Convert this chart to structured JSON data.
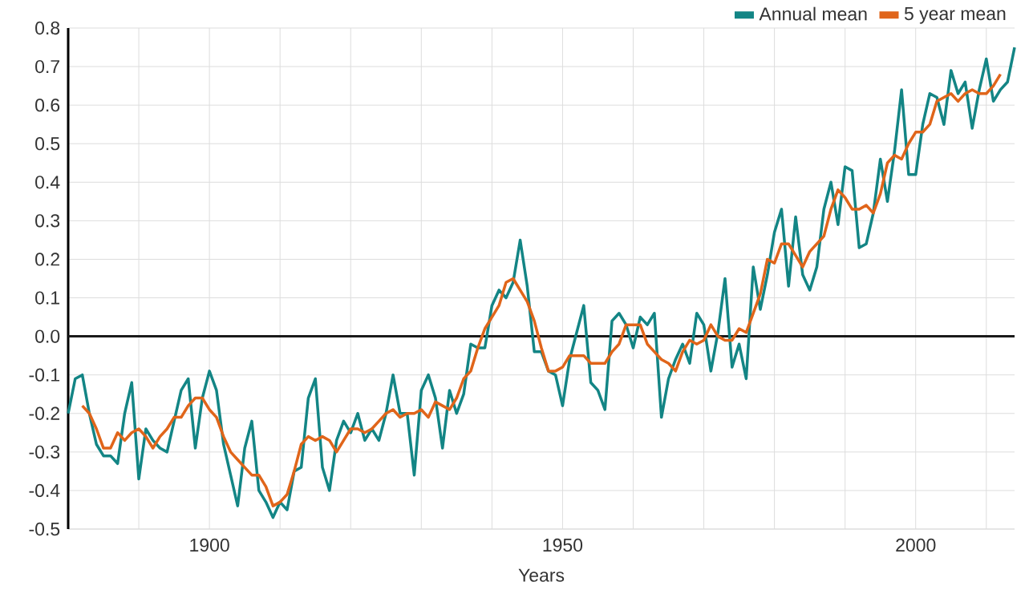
{
  "chart_data": {
    "type": "line",
    "xlabel": "Years",
    "xlim": [
      1880,
      2014
    ],
    "ylim": [
      -0.5,
      0.8
    ],
    "xticks": [
      {
        "value": 1890,
        "label": null
      },
      1900,
      {
        "value": 1910,
        "label": null
      },
      {
        "value": 1920,
        "label": null
      },
      {
        "value": 1930,
        "label": null
      },
      {
        "value": 1940,
        "label": null
      },
      1950,
      {
        "value": 1960,
        "label": null
      },
      {
        "value": 1970,
        "label": null
      },
      {
        "value": 1980,
        "label": null
      },
      {
        "value": 1990,
        "label": null
      },
      2000,
      {
        "value": 2010,
        "label": null
      }
    ],
    "yticks": [
      -0.5,
      -0.4,
      -0.3,
      -0.2,
      -0.1,
      {
        "value": 0,
        "label": "0.0"
      },
      0.1,
      0.2,
      0.3,
      0.4,
      0.5,
      0.6,
      0.7,
      0.8
    ],
    "grid": true,
    "legend": "top right",
    "marker": "none",
    "line_style": "solid",
    "ref_lines": [
      {
        "axis": "y",
        "value": 0,
        "color": "#1a1a1a"
      }
    ],
    "series": [
      {
        "name": "Annual mean",
        "color": "#138585",
        "x": [
          1880,
          1881,
          1882,
          1883,
          1884,
          1885,
          1886,
          1887,
          1888,
          1889,
          1890,
          1891,
          1892,
          1893,
          1894,
          1895,
          1896,
          1897,
          1898,
          1899,
          1900,
          1901,
          1902,
          1903,
          1904,
          1905,
          1906,
          1907,
          1908,
          1909,
          1910,
          1911,
          1912,
          1913,
          1914,
          1915,
          1916,
          1917,
          1918,
          1919,
          1920,
          1921,
          1922,
          1923,
          1924,
          1925,
          1926,
          1927,
          1928,
          1929,
          1930,
          1931,
          1932,
          1933,
          1934,
          1935,
          1936,
          1937,
          1938,
          1939,
          1940,
          1941,
          1942,
          1943,
          1944,
          1945,
          1946,
          1947,
          1948,
          1949,
          1950,
          1951,
          1952,
          1953,
          1954,
          1955,
          1956,
          1957,
          1958,
          1959,
          1960,
          1961,
          1962,
          1963,
          1964,
          1965,
          1966,
          1967,
          1968,
          1969,
          1970,
          1971,
          1972,
          1973,
          1974,
          1975,
          1976,
          1977,
          1978,
          1979,
          1980,
          1981,
          1982,
          1983,
          1984,
          1985,
          1986,
          1987,
          1988,
          1989,
          1990,
          1991,
          1992,
          1993,
          1994,
          1995,
          1996,
          1997,
          1998,
          1999,
          2000,
          2001,
          2002,
          2003,
          2004,
          2005,
          2006,
          2007,
          2008,
          2009,
          2010,
          2011,
          2012,
          2013,
          2014
        ],
        "values": [
          -0.2,
          -0.11,
          -0.1,
          -0.2,
          -0.28,
          -0.31,
          -0.31,
          -0.33,
          -0.2,
          -0.12,
          -0.37,
          -0.24,
          -0.27,
          -0.29,
          -0.3,
          -0.22,
          -0.14,
          -0.11,
          -0.29,
          -0.16,
          -0.09,
          -0.14,
          -0.28,
          -0.36,
          -0.44,
          -0.29,
          -0.22,
          -0.4,
          -0.43,
          -0.47,
          -0.43,
          -0.45,
          -0.35,
          -0.34,
          -0.16,
          -0.11,
          -0.34,
          -0.4,
          -0.27,
          -0.22,
          -0.25,
          -0.2,
          -0.27,
          -0.24,
          -0.27,
          -0.2,
          -0.1,
          -0.2,
          -0.2,
          -0.36,
          -0.14,
          -0.1,
          -0.16,
          -0.29,
          -0.14,
          -0.2,
          -0.15,
          -0.02,
          -0.03,
          -0.03,
          0.08,
          0.12,
          0.1,
          0.14,
          0.25,
          0.13,
          -0.04,
          -0.04,
          -0.09,
          -0.1,
          -0.18,
          -0.06,
          0.01,
          0.08,
          -0.12,
          -0.14,
          -0.19,
          0.04,
          0.06,
          0.03,
          -0.03,
          0.05,
          0.03,
          0.06,
          -0.21,
          -0.11,
          -0.06,
          -0.02,
          -0.07,
          0.06,
          0.03,
          -0.09,
          0.01,
          0.15,
          -0.08,
          -0.02,
          -0.11,
          0.18,
          0.07,
          0.16,
          0.27,
          0.33,
          0.13,
          0.31,
          0.16,
          0.12,
          0.18,
          0.33,
          0.4,
          0.29,
          0.44,
          0.43,
          0.23,
          0.24,
          0.32,
          0.46,
          0.35,
          0.48,
          0.64,
          0.42,
          0.42,
          0.55,
          0.63,
          0.62,
          0.55,
          0.69,
          0.63,
          0.66,
          0.54,
          0.64,
          0.72,
          0.61,
          0.64,
          0.66,
          0.75
        ]
      },
      {
        "name": "5 year mean",
        "color": "#e0651a",
        "x": [
          1882,
          1883,
          1884,
          1885,
          1886,
          1887,
          1888,
          1889,
          1890,
          1891,
          1892,
          1893,
          1894,
          1895,
          1896,
          1897,
          1898,
          1899,
          1900,
          1901,
          1902,
          1903,
          1904,
          1905,
          1906,
          1907,
          1908,
          1909,
          1910,
          1911,
          1912,
          1913,
          1914,
          1915,
          1916,
          1917,
          1918,
          1919,
          1920,
          1921,
          1922,
          1923,
          1924,
          1925,
          1926,
          1927,
          1928,
          1929,
          1930,
          1931,
          1932,
          1933,
          1934,
          1935,
          1936,
          1937,
          1938,
          1939,
          1940,
          1941,
          1942,
          1943,
          1944,
          1945,
          1946,
          1947,
          1948,
          1949,
          1950,
          1951,
          1952,
          1953,
          1954,
          1955,
          1956,
          1957,
          1958,
          1959,
          1960,
          1961,
          1962,
          1963,
          1964,
          1965,
          1966,
          1967,
          1968,
          1969,
          1970,
          1971,
          1972,
          1973,
          1974,
          1975,
          1976,
          1977,
          1978,
          1979,
          1980,
          1981,
          1982,
          1983,
          1984,
          1985,
          1986,
          1987,
          1988,
          1989,
          1990,
          1991,
          1992,
          1993,
          1994,
          1995,
          1996,
          1997,
          1998,
          1999,
          2000,
          2001,
          2002,
          2003,
          2004,
          2005,
          2006,
          2007,
          2008,
          2009,
          2010,
          2011,
          2012
        ],
        "values": [
          -0.18,
          -0.2,
          -0.24,
          -0.29,
          -0.29,
          -0.25,
          -0.27,
          -0.25,
          -0.24,
          -0.26,
          -0.29,
          -0.26,
          -0.24,
          -0.21,
          -0.21,
          -0.18,
          -0.16,
          -0.16,
          -0.19,
          -0.21,
          -0.26,
          -0.3,
          -0.32,
          -0.34,
          -0.36,
          -0.36,
          -0.39,
          -0.44,
          -0.43,
          -0.41,
          -0.35,
          -0.28,
          -0.26,
          -0.27,
          -0.26,
          -0.27,
          -0.3,
          -0.27,
          -0.24,
          -0.24,
          -0.25,
          -0.24,
          -0.22,
          -0.2,
          -0.19,
          -0.21,
          -0.2,
          -0.2,
          -0.19,
          -0.21,
          -0.17,
          -0.18,
          -0.19,
          -0.16,
          -0.11,
          -0.09,
          -0.03,
          0.02,
          0.05,
          0.08,
          0.14,
          0.15,
          0.12,
          0.09,
          0.04,
          -0.03,
          -0.09,
          -0.09,
          -0.08,
          -0.05,
          -0.05,
          -0.05,
          -0.07,
          -0.07,
          -0.07,
          -0.04,
          -0.02,
          0.03,
          0.03,
          0.03,
          -0.02,
          -0.04,
          -0.06,
          -0.07,
          -0.09,
          -0.04,
          -0.01,
          -0.02,
          -0.01,
          0.03,
          0.0,
          -0.01,
          -0.01,
          0.02,
          0.01,
          0.06,
          0.11,
          0.2,
          0.19,
          0.24,
          0.24,
          0.21,
          0.18,
          0.22,
          0.24,
          0.26,
          0.33,
          0.38,
          0.36,
          0.33,
          0.33,
          0.34,
          0.32,
          0.37,
          0.45,
          0.47,
          0.46,
          0.5,
          0.53,
          0.53,
          0.55,
          0.61,
          0.62,
          0.63,
          0.61,
          0.63,
          0.64,
          0.63,
          0.63,
          0.65,
          0.68
        ]
      }
    ]
  }
}
